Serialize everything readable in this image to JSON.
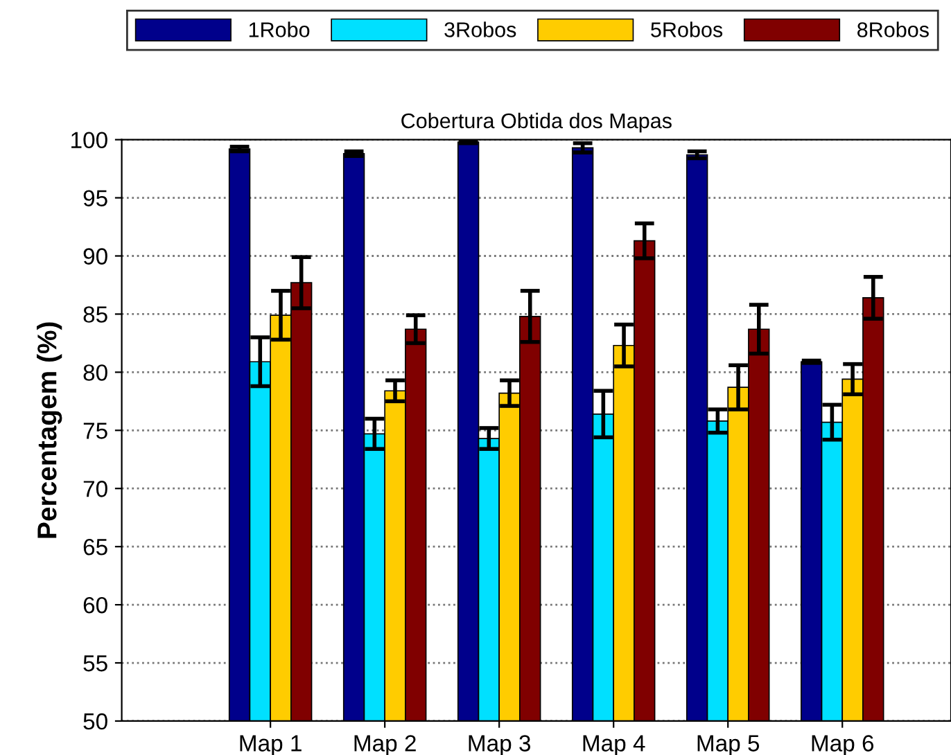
{
  "chart_data": {
    "type": "bar",
    "title": "Cobertura Obtida dos Mapas",
    "ylabel": "Percentagem (%)",
    "categories": [
      "Map 1",
      "Map 2",
      "Map 3",
      "Map 4",
      "Map 5",
      "Map 6"
    ],
    "series": [
      {
        "name": "1Robo",
        "color": "#00008b",
        "values": [
          99.2,
          98.8,
          99.8,
          99.3,
          98.7,
          80.9
        ],
        "errors": [
          0.2,
          0.2,
          0.1,
          0.4,
          0.3,
          0.1
        ]
      },
      {
        "name": "3Robos",
        "color": "#00e0ff",
        "values": [
          80.9,
          74.7,
          74.3,
          76.4,
          75.8,
          75.7
        ],
        "errors": [
          2.1,
          1.3,
          0.9,
          2.0,
          1.0,
          1.5
        ]
      },
      {
        "name": "5Robos",
        "color": "#ffcc00",
        "values": [
          84.9,
          78.4,
          78.2,
          82.3,
          78.7,
          79.4
        ],
        "errors": [
          2.1,
          0.9,
          1.1,
          1.8,
          1.9,
          1.3
        ]
      },
      {
        "name": "8Robos",
        "color": "#800000",
        "values": [
          87.7,
          83.7,
          84.8,
          91.3,
          83.7,
          86.4
        ],
        "errors": [
          2.2,
          1.2,
          2.2,
          1.5,
          2.1,
          1.8
        ]
      }
    ],
    "ylim": [
      50,
      100
    ],
    "yticks": [
      50,
      55,
      60,
      65,
      70,
      75,
      80,
      85,
      90,
      95,
      100
    ],
    "grid": "y",
    "legend": "top"
  }
}
